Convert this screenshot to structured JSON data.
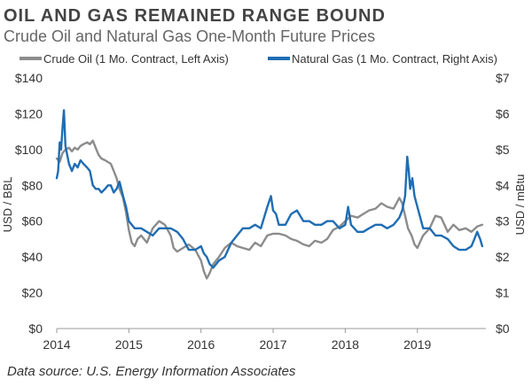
{
  "chart_data": {
    "type": "line",
    "title": "OIL AND GAS REMAINED RANGE BOUND",
    "subtitle": "Crude Oil and Natural Gas One-Month Future Prices",
    "source": "Data source: U.S. Energy Information Associates",
    "ylabel_left": "USD / BBL",
    "ylabel_right": "USD / mBtu",
    "x_range": [
      2014,
      2019.95
    ],
    "ylim_left": [
      0,
      140
    ],
    "ylim_right": [
      0,
      7
    ],
    "x_ticks": [
      "2014",
      "2015",
      "2016",
      "2017",
      "2018",
      "2019"
    ],
    "y_ticks_left": [
      "$0",
      "$20",
      "$40",
      "$60",
      "$80",
      "$100",
      "$120",
      "$140"
    ],
    "y_ticks_right": [
      "$0",
      "$1",
      "$2",
      "$3",
      "$4",
      "$5",
      "$6",
      "$7"
    ],
    "grid": false,
    "legend_position": "top",
    "series": [
      {
        "name": "Crude Oil (1 Mo. Contract, Left Axis)",
        "axis": "left",
        "color": "#8c8c8c",
        "x": [
          2014.0,
          2014.04,
          2014.08,
          2014.12,
          2014.17,
          2014.21,
          2014.25,
          2014.29,
          2014.33,
          2014.37,
          2014.42,
          2014.46,
          2014.5,
          2014.54,
          2014.58,
          2014.62,
          2014.67,
          2014.71,
          2014.75,
          2014.79,
          2014.83,
          2014.87,
          2014.92,
          2014.96,
          2015.0,
          2015.04,
          2015.08,
          2015.12,
          2015.17,
          2015.25,
          2015.33,
          2015.42,
          2015.5,
          2015.58,
          2015.62,
          2015.67,
          2015.75,
          2015.83,
          2015.92,
          2016.0,
          2016.04,
          2016.08,
          2016.12,
          2016.17,
          2016.25,
          2016.33,
          2016.42,
          2016.5,
          2016.58,
          2016.67,
          2016.75,
          2016.83,
          2016.92,
          2017.0,
          2017.08,
          2017.17,
          2017.25,
          2017.33,
          2017.42,
          2017.5,
          2017.58,
          2017.67,
          2017.75,
          2017.83,
          2017.92,
          2018.0,
          2018.08,
          2018.17,
          2018.25,
          2018.33,
          2018.42,
          2018.5,
          2018.58,
          2018.67,
          2018.75,
          2018.79,
          2018.83,
          2018.87,
          2018.92,
          2018.96,
          2019.0,
          2019.08,
          2019.17,
          2019.25,
          2019.33,
          2019.42,
          2019.5,
          2019.58,
          2019.67,
          2019.75,
          2019.83,
          2019.9
        ],
        "values": [
          95,
          93,
          98,
          100,
          101,
          99,
          101,
          100,
          102,
          103,
          104,
          103,
          105,
          101,
          97,
          95,
          94,
          93,
          92,
          88,
          84,
          78,
          73,
          65,
          55,
          48,
          46,
          50,
          52,
          48,
          56,
          60,
          58,
          52,
          45,
          43,
          45,
          47,
          44,
          38,
          32,
          28,
          31,
          36,
          40,
          45,
          48,
          46,
          45,
          44,
          48,
          46,
          52,
          53,
          53,
          52,
          50,
          49,
          47,
          46,
          49,
          48,
          50,
          55,
          57,
          60,
          63,
          62,
          64,
          66,
          67,
          70,
          68,
          67,
          73,
          70,
          63,
          56,
          52,
          47,
          45,
          52,
          56,
          63,
          62,
          54,
          58,
          55,
          56,
          54,
          57,
          58
        ]
      },
      {
        "name": "Natural Gas (1 Mo. Contract, Right Axis)",
        "axis": "right",
        "color": "#1f6db3",
        "x": [
          2014.0,
          2014.02,
          2014.04,
          2014.06,
          2014.08,
          2014.1,
          2014.12,
          2014.14,
          2014.17,
          2014.21,
          2014.25,
          2014.29,
          2014.33,
          2014.37,
          2014.42,
          2014.46,
          2014.5,
          2014.54,
          2014.58,
          2014.62,
          2014.67,
          2014.71,
          2014.75,
          2014.79,
          2014.83,
          2014.87,
          2014.92,
          2014.96,
          2015.0,
          2015.04,
          2015.08,
          2015.17,
          2015.25,
          2015.33,
          2015.42,
          2015.5,
          2015.58,
          2015.67,
          2015.75,
          2015.83,
          2015.92,
          2016.0,
          2016.04,
          2016.08,
          2016.12,
          2016.17,
          2016.25,
          2016.33,
          2016.42,
          2016.5,
          2016.58,
          2016.67,
          2016.75,
          2016.83,
          2016.92,
          2016.97,
          2017.0,
          2017.04,
          2017.08,
          2017.17,
          2017.25,
          2017.33,
          2017.42,
          2017.5,
          2017.58,
          2017.67,
          2017.75,
          2017.83,
          2017.92,
          2018.0,
          2018.04,
          2018.08,
          2018.17,
          2018.25,
          2018.33,
          2018.42,
          2018.5,
          2018.58,
          2018.67,
          2018.75,
          2018.79,
          2018.83,
          2018.86,
          2018.88,
          2018.9,
          2018.93,
          2018.96,
          2019.0,
          2019.04,
          2019.08,
          2019.17,
          2019.25,
          2019.33,
          2019.42,
          2019.5,
          2019.58,
          2019.67,
          2019.75,
          2019.79,
          2019.83,
          2019.87,
          2019.9
        ],
        "values": [
          4.2,
          4.4,
          5.2,
          5.0,
          5.6,
          6.1,
          5.1,
          4.9,
          4.6,
          4.4,
          4.6,
          4.5,
          4.7,
          4.6,
          4.5,
          4.4,
          4.0,
          3.9,
          3.9,
          3.8,
          3.9,
          4.0,
          4.0,
          3.8,
          3.9,
          4.1,
          3.7,
          3.4,
          3.0,
          2.9,
          2.8,
          2.8,
          2.7,
          2.6,
          2.8,
          2.8,
          2.8,
          2.7,
          2.5,
          2.2,
          2.2,
          2.3,
          2.1,
          2.0,
          1.8,
          1.7,
          1.9,
          2.0,
          2.4,
          2.6,
          2.8,
          2.8,
          2.9,
          2.8,
          3.4,
          3.7,
          3.3,
          3.2,
          2.9,
          2.9,
          3.2,
          3.3,
          3.0,
          3.0,
          2.9,
          2.9,
          3.0,
          3.0,
          2.8,
          2.9,
          3.4,
          2.9,
          2.7,
          2.7,
          2.8,
          2.9,
          2.9,
          2.8,
          2.9,
          3.1,
          3.3,
          3.7,
          4.8,
          4.4,
          3.9,
          4.2,
          3.7,
          3.4,
          3.1,
          2.8,
          2.8,
          2.6,
          2.6,
          2.5,
          2.3,
          2.2,
          2.2,
          2.3,
          2.5,
          2.7,
          2.5,
          2.3
        ]
      }
    ]
  }
}
